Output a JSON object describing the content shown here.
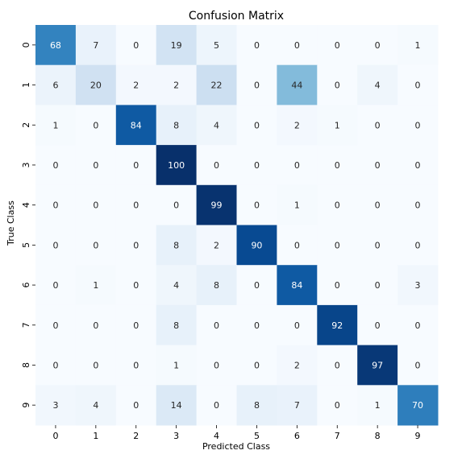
{
  "chart_data": {
    "type": "heatmap",
    "title": "Confusion Matrix",
    "xlabel": "Predicted Class",
    "ylabel": "True Class",
    "x_categories": [
      "0",
      "1",
      "2",
      "3",
      "4",
      "5",
      "6",
      "7",
      "8",
      "9"
    ],
    "y_categories": [
      "0",
      "1",
      "2",
      "3",
      "4",
      "5",
      "6",
      "7",
      "8",
      "9"
    ],
    "values": [
      [
        68,
        7,
        0,
        19,
        5,
        0,
        0,
        0,
        0,
        1
      ],
      [
        6,
        20,
        2,
        2,
        22,
        0,
        44,
        0,
        4,
        0
      ],
      [
        1,
        0,
        84,
        8,
        4,
        0,
        2,
        1,
        0,
        0
      ],
      [
        0,
        0,
        0,
        100,
        0,
        0,
        0,
        0,
        0,
        0
      ],
      [
        0,
        0,
        0,
        0,
        99,
        0,
        1,
        0,
        0,
        0
      ],
      [
        0,
        0,
        0,
        8,
        2,
        90,
        0,
        0,
        0,
        0
      ],
      [
        0,
        1,
        0,
        4,
        8,
        0,
        84,
        0,
        0,
        3
      ],
      [
        0,
        0,
        0,
        8,
        0,
        0,
        0,
        92,
        0,
        0
      ],
      [
        0,
        0,
        0,
        1,
        0,
        0,
        2,
        0,
        97,
        0
      ],
      [
        3,
        4,
        0,
        14,
        0,
        8,
        7,
        0,
        1,
        70
      ]
    ],
    "colormap": "Blues",
    "value_range": [
      0,
      100
    ],
    "colorbar": false,
    "grid": false
  }
}
